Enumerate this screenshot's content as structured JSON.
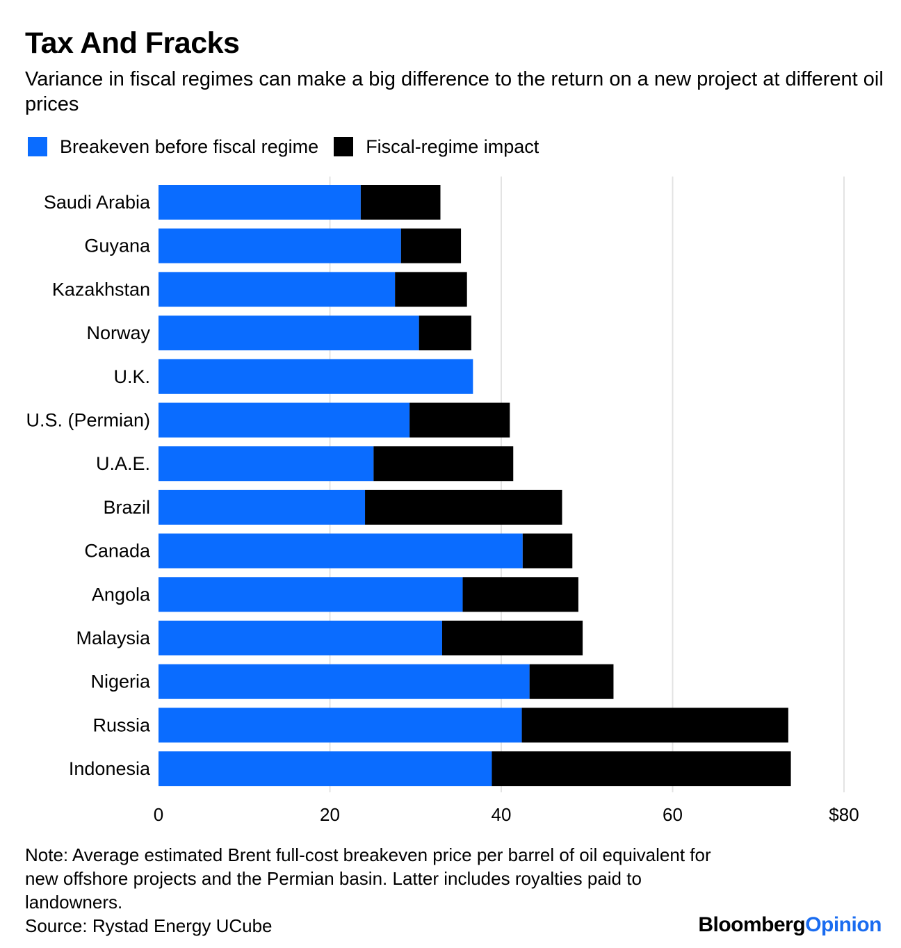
{
  "header": {
    "title": "Tax And Fracks",
    "subtitle": "Variance in fiscal regimes can make a big difference to the return on a new project at different oil prices"
  },
  "legend": {
    "items": [
      {
        "label": "Breakeven before fiscal regime",
        "color": "#0a6cff"
      },
      {
        "label": "Fiscal-regime impact",
        "color": "#000000"
      }
    ]
  },
  "chart_data": {
    "type": "bar",
    "orientation": "horizontal",
    "stacked": true,
    "title": "Tax And Fracks",
    "subtitle": "Variance in fiscal regimes can make a big difference to the return on a new project at different oil prices",
    "xlabel": "",
    "ylabel": "",
    "xlim": [
      0,
      80
    ],
    "xticks": [
      0,
      20,
      40,
      60,
      80
    ],
    "xtick_labels": [
      "0",
      "20",
      "40",
      "60",
      "$80"
    ],
    "grid": true,
    "legend_position": "top-left",
    "categories": [
      "Saudi Arabia",
      "Guyana",
      "Kazakhstan",
      "Norway",
      "U.K.",
      "U.S. (Permian)",
      "U.A.E.",
      "Brazil",
      "Canada",
      "Angola",
      "Malaysia",
      "Nigeria",
      "Russia",
      "Indonesia"
    ],
    "series": [
      {
        "name": "Breakeven before fiscal regime",
        "color": "#0a6cff",
        "values": [
          23.6,
          28.3,
          27.6,
          30.4,
          36.7,
          29.3,
          25.1,
          24.1,
          42.5,
          35.5,
          33.1,
          43.3,
          42.4,
          38.9
        ]
      },
      {
        "name": "Fiscal-regime impact",
        "color": "#000000",
        "values": [
          9.3,
          7.0,
          8.4,
          6.1,
          0.0,
          11.7,
          16.3,
          23.0,
          5.8,
          13.5,
          16.4,
          9.8,
          31.1,
          34.9
        ]
      }
    ]
  },
  "footer": {
    "note": "Note: Average estimated Brent full-cost breakeven price per barrel of oil equivalent for new offshore projects and the Permian basin. Latter includes royalties paid to landowners.",
    "source": "Source: Rystad Energy UCube",
    "brand_part1": "Bloomberg",
    "brand_part2": "Opinion"
  }
}
